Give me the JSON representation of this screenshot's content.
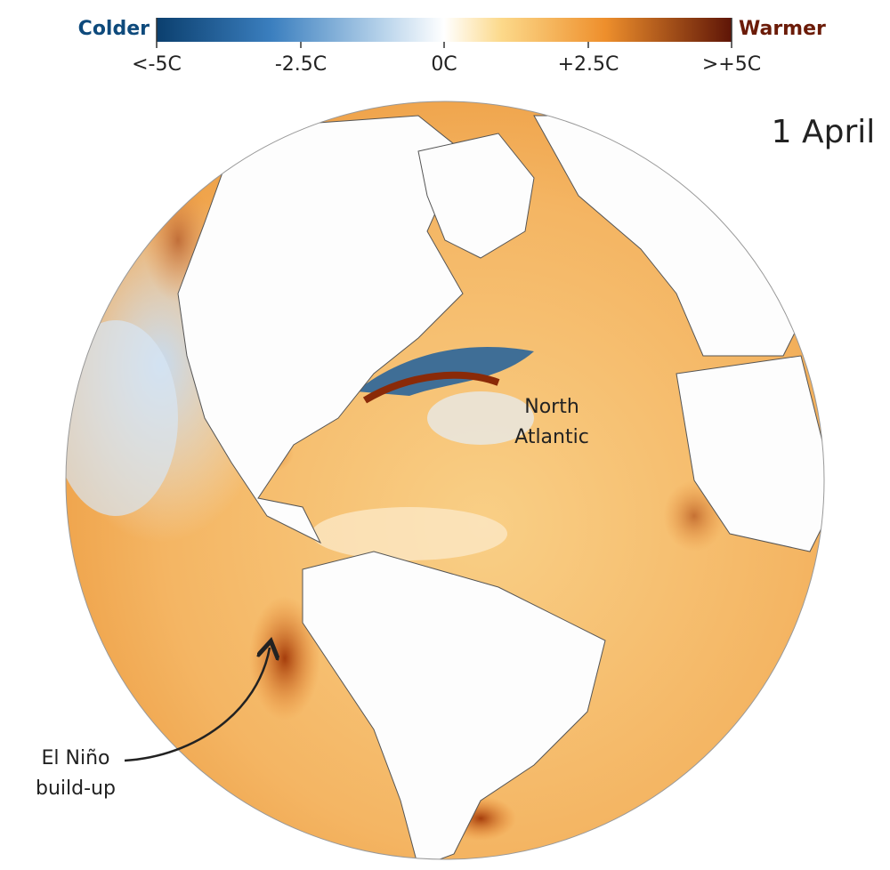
{
  "legend": {
    "low_label": "Colder",
    "high_label": "Warmer",
    "ticks": [
      "<-5C",
      "-2.5C",
      "0C",
      "+2.5C",
      ">+5C"
    ]
  },
  "date": "1 April",
  "labels": {
    "north_atlantic": [
      "North",
      "Atlantic"
    ],
    "el_nino": [
      "El Niño",
      "build-up"
    ]
  }
}
